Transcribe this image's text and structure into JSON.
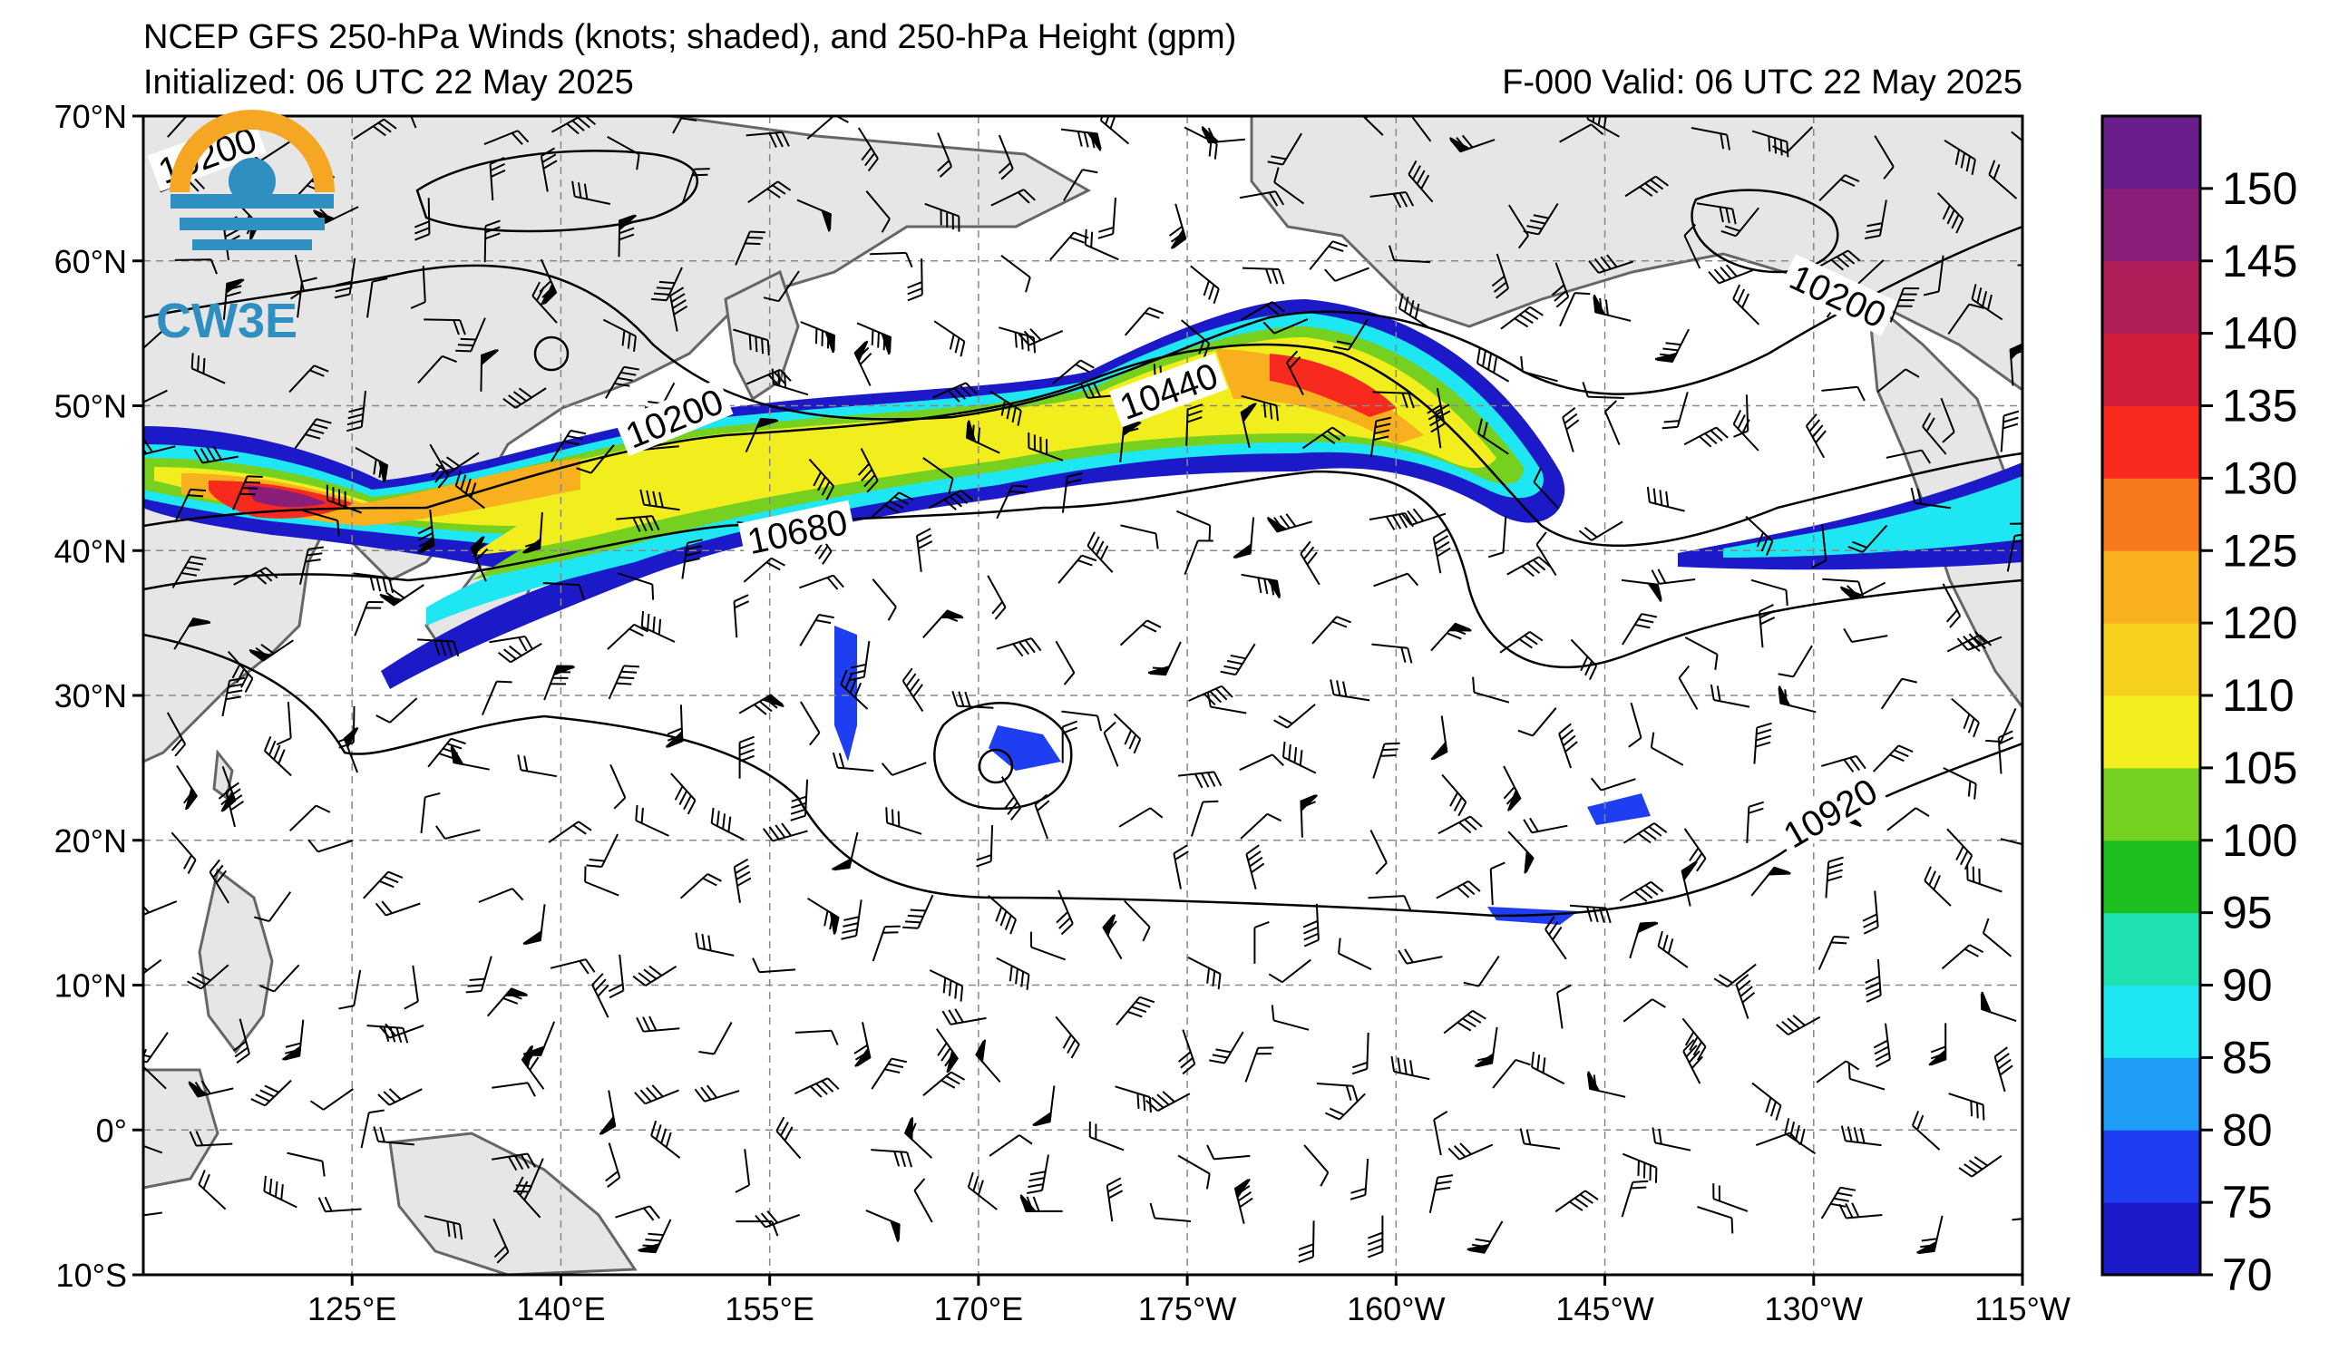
{
  "header": {
    "title": "NCEP GFS 250-hPa Winds (knots; shaded), and 250-hPa Height (gpm)",
    "initialized": "Initialized: 06 UTC 22 May 2025",
    "valid": "F-000  Valid: 06 UTC 22 May 2025"
  },
  "map": {
    "lat_labels": [
      "70°N",
      "60°N",
      "50°N",
      "40°N",
      "30°N",
      "20°N",
      "10°N",
      "0°",
      "10°S"
    ],
    "lon_labels": [
      "125°E",
      "140°E",
      "155°E",
      "170°E",
      "175°W",
      "160°W",
      "145°W",
      "130°W",
      "115°W"
    ],
    "contour_labels": [
      "10200",
      "10200",
      "10440",
      "10680",
      "10920",
      "10200"
    ],
    "land_color": "#e6e6e6",
    "coast_color": "#666666",
    "grid_style": "dashed gray"
  },
  "colorbar": {
    "labels": [
      "70",
      "75",
      "80",
      "85",
      "90",
      "95",
      "100",
      "105",
      "110",
      "120",
      "125",
      "130",
      "135",
      "140",
      "145",
      "150"
    ],
    "colors": [
      "#1c1ac8",
      "#1f3ef2",
      "#1f9cf5",
      "#1ee6f2",
      "#1ee3b0",
      "#1ec020",
      "#76d020",
      "#f2ee1e",
      "#f6d01e",
      "#f8b01e",
      "#f8781e",
      "#f82a1e",
      "#d21e3c",
      "#b01e5a",
      "#8a1e78",
      "#6a1e8c"
    ]
  },
  "logo": {
    "text": "CW3E"
  }
}
